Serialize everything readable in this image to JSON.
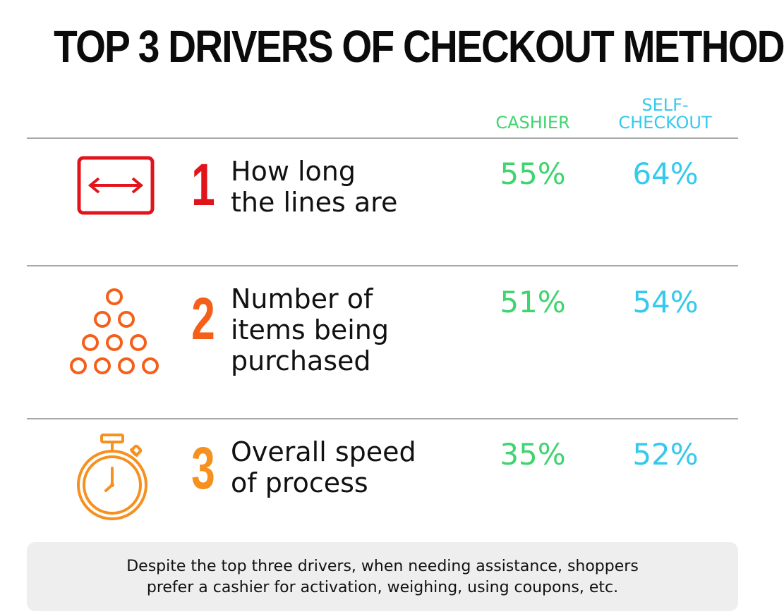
{
  "title": "TOP 3 DRIVERS OF CHECKOUT METHOD",
  "columns": {
    "cashier": "CASHIER",
    "self_checkout": "SELF-\nCHECKOUT"
  },
  "colors": {
    "cashier": "#3fd46f",
    "self_checkout": "#35c9ee",
    "rank1": "#e1141b",
    "rank2": "#f4601a",
    "rank3": "#f6901e"
  },
  "rows": [
    {
      "rank": "1",
      "driver": "How long\nthe lines are",
      "cashier": "55%",
      "self_checkout": "64%",
      "icon": "line-length-icon"
    },
    {
      "rank": "2",
      "driver": "Number of\nitems being\npurchased",
      "cashier": "51%",
      "self_checkout": "54%",
      "icon": "stacked-items-icon"
    },
    {
      "rank": "3",
      "driver": "Overall speed\nof process",
      "cashier": "35%",
      "self_checkout": "52%",
      "icon": "stopwatch-icon"
    }
  ],
  "footnote": "Despite the top three drivers, when needing assistance, shoppers\nprefer a cashier for activation, weighing, using coupons, etc.",
  "chart_data": {
    "type": "table",
    "title": "TOP 3 DRIVERS OF CHECKOUT METHOD",
    "columns": [
      "CASHIER",
      "SELF-CHECKOUT"
    ],
    "categories": [
      "How long the lines are",
      "Number of items being purchased",
      "Overall speed of process"
    ],
    "series": [
      {
        "name": "CASHIER",
        "values": [
          55,
          51,
          35
        ]
      },
      {
        "name": "SELF-CHECKOUT",
        "values": [
          64,
          54,
          52
        ]
      }
    ],
    "unit": "%"
  }
}
